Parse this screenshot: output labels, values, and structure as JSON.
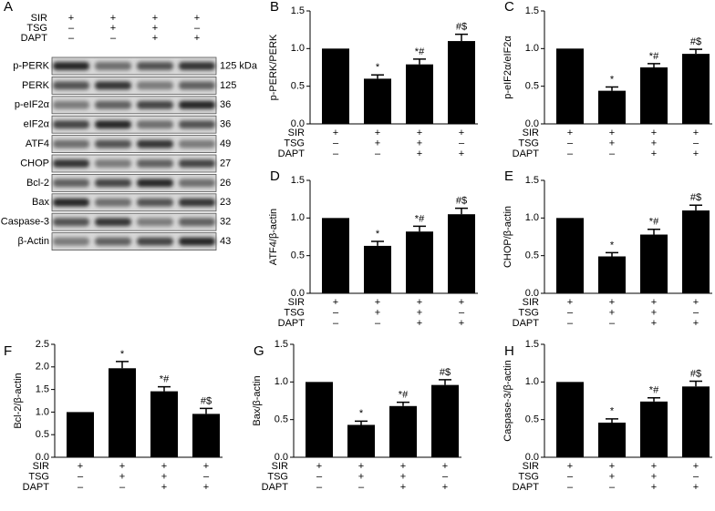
{
  "conditions": [
    {
      "name": "SIR",
      "signs": [
        "+",
        "+",
        "+",
        "+"
      ]
    },
    {
      "name": "TSG",
      "signs": [
        "–",
        "+",
        "+",
        "–"
      ]
    },
    {
      "name": "DAPT",
      "signs": [
        "–",
        "–",
        "+",
        "+"
      ]
    }
  ],
  "blot": {
    "label": "A",
    "rows": [
      {
        "protein": "p-PERK",
        "size": "125 kDa"
      },
      {
        "protein": "PERK",
        "size": "125"
      },
      {
        "protein": "p-eIF2α",
        "size": "36"
      },
      {
        "protein": "eIF2α",
        "size": "36"
      },
      {
        "protein": "ATF4",
        "size": "49"
      },
      {
        "protein": "CHOP",
        "size": "27"
      },
      {
        "protein": "Bcl-2",
        "size": "26"
      },
      {
        "protein": "Bax",
        "size": "23"
      },
      {
        "protein": "Caspase-3",
        "size": "32"
      },
      {
        "protein": "β-Actin",
        "size": "43"
      }
    ]
  },
  "chart_data": [
    {
      "type": "bar",
      "label": "B",
      "ylabel": "p-PERK/PERK",
      "values": [
        1.0,
        0.6,
        0.79,
        1.1
      ],
      "errors": [
        0,
        0.05,
        0.07,
        0.09
      ],
      "value_annotations": [
        null,
        "*",
        "*#",
        "#$"
      ],
      "color": "#000000",
      "ylim": [
        0,
        1.5
      ],
      "yticks": [
        {
          "value": 0,
          "label": "0.0"
        },
        0.5,
        {
          "value": 1,
          "label": "1.0"
        },
        1.5
      ]
    },
    {
      "type": "bar",
      "label": "C",
      "ylabel": "p-eIF2α/eIF2α",
      "values": [
        1.0,
        0.44,
        0.75,
        0.93
      ],
      "errors": [
        0,
        0.05,
        0.05,
        0.06
      ],
      "value_annotations": [
        null,
        "*",
        "*#",
        "#$"
      ],
      "color": "#000000",
      "ylim": [
        0,
        1.5
      ],
      "yticks": [
        {
          "value": 0,
          "label": "0.0"
        },
        0.5,
        {
          "value": 1,
          "label": "1.0"
        },
        1.5
      ]
    },
    {
      "type": "bar",
      "label": "D",
      "ylabel": "ATF4/β-actin",
      "values": [
        1.0,
        0.63,
        0.82,
        1.05
      ],
      "errors": [
        0,
        0.06,
        0.07,
        0.08
      ],
      "value_annotations": [
        null,
        "*",
        "*#",
        "#$"
      ],
      "color": "#000000",
      "ylim": [
        0,
        1.5
      ],
      "yticks": [
        {
          "value": 0,
          "label": "0.0"
        },
        0.5,
        {
          "value": 1,
          "label": "1.0"
        },
        1.5
      ]
    },
    {
      "type": "bar",
      "label": "E",
      "ylabel": "CHOP/β-actin",
      "values": [
        1.0,
        0.49,
        0.78,
        1.1
      ],
      "errors": [
        0,
        0.05,
        0.07,
        0.07
      ],
      "value_annotations": [
        null,
        "*",
        "*#",
        "#$"
      ],
      "color": "#000000",
      "ylim": [
        0,
        1.5
      ],
      "yticks": [
        {
          "value": 0,
          "label": "0.0"
        },
        0.5,
        {
          "value": 1,
          "label": "1.0"
        },
        1.5
      ]
    },
    {
      "type": "bar",
      "label": "F",
      "ylabel": "Bcl-2/β-actin",
      "values": [
        1.0,
        1.97,
        1.46,
        0.96
      ],
      "errors": [
        0,
        0.15,
        0.1,
        0.12
      ],
      "value_annotations": [
        null,
        "*",
        "*#",
        "#$"
      ],
      "color": "#000000",
      "ylim": [
        0,
        2.5
      ],
      "yticks": [
        {
          "value": 0,
          "label": "0.0"
        },
        0.5,
        {
          "value": 1,
          "label": "1.0"
        },
        1.5,
        {
          "value": 2,
          "label": "2.0"
        },
        2.5
      ]
    },
    {
      "type": "bar",
      "label": "G",
      "ylabel": "Bax/β-actin",
      "values": [
        1.0,
        0.43,
        0.68,
        0.96
      ],
      "errors": [
        0,
        0.05,
        0.05,
        0.07
      ],
      "value_annotations": [
        null,
        "*",
        "*#",
        "#$"
      ],
      "color": "#000000",
      "ylim": [
        0,
        1.5
      ],
      "yticks": [
        {
          "value": 0,
          "label": "0.0"
        },
        0.5,
        {
          "value": 1,
          "label": "1.0"
        },
        1.5
      ]
    },
    {
      "type": "bar",
      "label": "H",
      "ylabel": "Caspase-3/β-actin",
      "values": [
        1.0,
        0.46,
        0.74,
        0.94
      ],
      "errors": [
        0,
        0.05,
        0.05,
        0.07
      ],
      "value_annotations": [
        null,
        "*",
        "*#",
        "#$"
      ],
      "color": "#000000",
      "ylim": [
        0,
        1.5
      ],
      "yticks": [
        {
          "value": 0,
          "label": "0.0"
        },
        0.5,
        {
          "value": 1,
          "label": "1.0"
        },
        1.5
      ]
    }
  ]
}
